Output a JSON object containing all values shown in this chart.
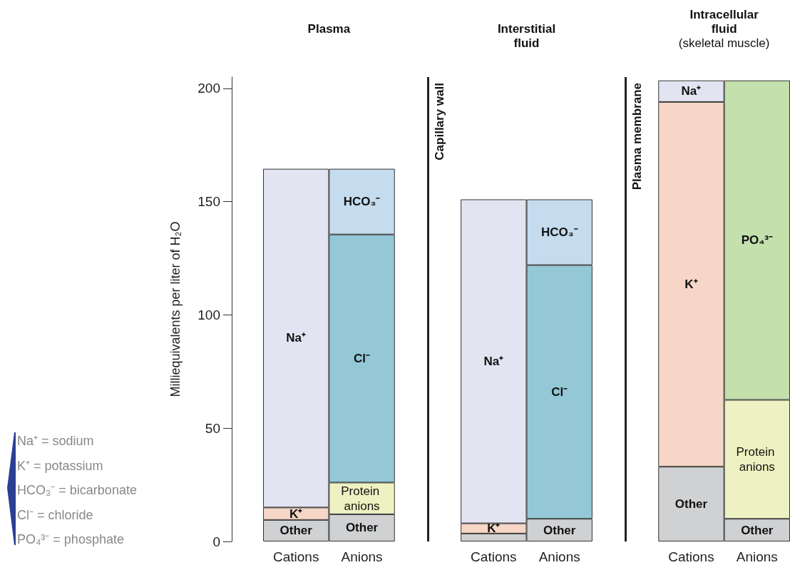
{
  "chart_data": {
    "type": "bar",
    "stacked": true,
    "ylabel": "Milliequivalents per liter of H₂O",
    "categories": [
      "Cations",
      "Anions",
      null,
      "Cations",
      "Anions",
      null,
      "Cations",
      "Anions"
    ],
    "ylim": [
      0,
      205
    ],
    "yticks": [
      0,
      50,
      100,
      150,
      200
    ],
    "series": [
      {
        "name": "Other",
        "color": "#d0d1d3",
        "values": [
          9.5,
          12,
          null,
          3.5,
          10,
          null,
          33,
          10
        ]
      },
      {
        "name": "K⁺",
        "color": "#f6d6c6",
        "values": [
          5.5,
          null,
          null,
          4.5,
          null,
          null,
          161,
          null
        ]
      },
      {
        "name": "Na⁺",
        "color": "#e3e4f1",
        "values": [
          149.5,
          null,
          null,
          143,
          null,
          null,
          9.5,
          null
        ]
      },
      {
        "name": "Protein anions",
        "color": "#eef2c2",
        "values": [
          null,
          14,
          null,
          null,
          null,
          null,
          null,
          52.5
        ]
      },
      {
        "name": "Cl⁻",
        "color": "#94c8d6",
        "values": [
          null,
          109.5,
          null,
          null,
          112,
          null,
          null,
          null
        ]
      },
      {
        "name": "HCO₃⁻",
        "color": "#c5dbee",
        "values": [
          null,
          29,
          null,
          null,
          29,
          null,
          null,
          null
        ]
      },
      {
        "name": "PO₄³⁻",
        "color": "#c3e0ad",
        "values": [
          null,
          null,
          null,
          null,
          null,
          null,
          null,
          141
        ]
      }
    ],
    "ref_lines": [
      {
        "axis": "x",
        "label": "Capillary wall"
      },
      {
        "axis": "x",
        "label": "Plasma membrane"
      }
    ],
    "annotations": [
      "Plasma",
      "Interstitial\nfluid",
      "Intracellular\nfluid",
      "(skeletal muscle)",
      "Na⁺ = sodium",
      "K⁺ = potassium",
      "HCO₃⁻ = bicarbonate",
      "Cl⁻ = chloride",
      "PO₄³⁻ = phosphate"
    ]
  }
}
